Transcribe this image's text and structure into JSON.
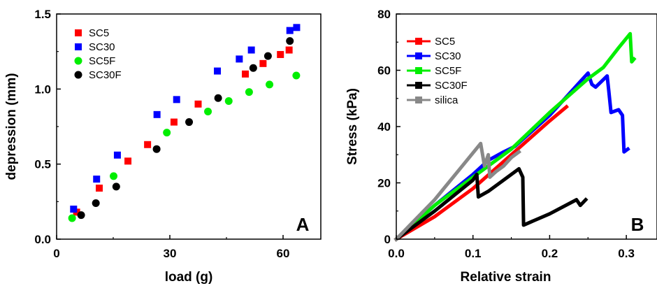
{
  "chart_data": [
    {
      "type": "scatter",
      "panel_label": "A",
      "xlabel": "load (g)",
      "ylabel": "depression (mm)",
      "xlim": [
        0,
        70
      ],
      "ylim": [
        0,
        1.5
      ],
      "x_ticks": [
        "0",
        "30",
        "60"
      ],
      "y_ticks": [
        "0.0",
        "0.5",
        "1.0",
        "1.5"
      ],
      "x_tick_values": [
        0,
        30,
        60
      ],
      "y_tick_values": [
        0,
        0.5,
        1.0,
        1.5
      ],
      "legend_position": "top-left",
      "grid": false,
      "series": [
        {
          "name": "SC5",
          "color": "#ff0000",
          "marker": "square",
          "points": [
            [
              5.3,
              0.18
            ],
            [
              11.3,
              0.34
            ],
            [
              18.9,
              0.52
            ],
            [
              24.1,
              0.63
            ],
            [
              31.1,
              0.78
            ],
            [
              37.5,
              0.9
            ],
            [
              50.0,
              1.1
            ],
            [
              54.7,
              1.17
            ],
            [
              59.3,
              1.23
            ],
            [
              61.6,
              1.26
            ]
          ]
        },
        {
          "name": "SC30",
          "color": "#0000ff",
          "marker": "square",
          "points": [
            [
              4.5,
              0.2
            ],
            [
              10.6,
              0.4
            ],
            [
              16.1,
              0.56
            ],
            [
              26.6,
              0.83
            ],
            [
              31.8,
              0.93
            ],
            [
              42.6,
              1.12
            ],
            [
              48.4,
              1.2
            ],
            [
              51.6,
              1.26
            ],
            [
              61.8,
              1.39
            ],
            [
              63.6,
              1.41
            ]
          ]
        },
        {
          "name": "SC5F",
          "color": "#00ee00",
          "marker": "circle",
          "points": [
            [
              4.1,
              0.14
            ],
            [
              15.1,
              0.42
            ],
            [
              29.2,
              0.71
            ],
            [
              40.1,
              0.85
            ],
            [
              45.6,
              0.92
            ],
            [
              51.0,
              0.98
            ],
            [
              56.4,
              1.03
            ],
            [
              63.5,
              1.09
            ]
          ]
        },
        {
          "name": "SC30F",
          "color": "#000000",
          "marker": "circle",
          "points": [
            [
              6.5,
              0.16
            ],
            [
              10.4,
              0.24
            ],
            [
              15.8,
              0.35
            ],
            [
              26.5,
              0.6
            ],
            [
              35.1,
              0.78
            ],
            [
              42.8,
              0.94
            ],
            [
              52.1,
              1.14
            ],
            [
              56.0,
              1.22
            ],
            [
              61.8,
              1.32
            ]
          ]
        }
      ]
    },
    {
      "type": "line",
      "panel_label": "B",
      "xlabel": "Relative strain",
      "ylabel": "Stress (kPa)",
      "xlim": [
        0,
        0.34
      ],
      "ylim": [
        0,
        80
      ],
      "x_ticks": [
        "0.0",
        "0.1",
        "0.2",
        "0.3"
      ],
      "y_ticks": [
        "0",
        "20",
        "40",
        "60",
        "80"
      ],
      "x_tick_values": [
        0,
        0.1,
        0.2,
        0.3
      ],
      "y_tick_values": [
        0,
        20,
        40,
        60,
        80
      ],
      "legend_position": "top-left",
      "grid": false,
      "series": [
        {
          "name": "SC5",
          "color": "#ff0000",
          "points": [
            [
              0,
              0
            ],
            [
              0.05,
              8
            ],
            [
              0.1,
              18
            ],
            [
              0.15,
              30
            ],
            [
              0.2,
              42
            ],
            [
              0.222,
              47
            ]
          ]
        },
        {
          "name": "SC30",
          "color": "#0000ff",
          "points": [
            [
              0,
              0
            ],
            [
              0.05,
              12
            ],
            [
              0.1,
              23
            ],
            [
              0.12,
              28
            ],
            [
              0.14,
              31
            ],
            [
              0.155,
              33
            ],
            [
              0.2,
              44
            ],
            [
              0.24,
              56
            ],
            [
              0.25,
              59
            ],
            [
              0.255,
              55
            ],
            [
              0.26,
              54
            ],
            [
              0.275,
              58
            ],
            [
              0.277,
              53
            ],
            [
              0.28,
              45
            ],
            [
              0.29,
              46
            ],
            [
              0.295,
              44
            ],
            [
              0.297,
              31
            ],
            [
              0.302,
              32
            ]
          ]
        },
        {
          "name": "SC5F",
          "color": "#00ee00",
          "points": [
            [
              0,
              0
            ],
            [
              0.05,
              12
            ],
            [
              0.1,
              22
            ],
            [
              0.15,
              32
            ],
            [
              0.2,
              45
            ],
            [
              0.25,
              57
            ],
            [
              0.27,
              61
            ],
            [
              0.29,
              68
            ],
            [
              0.305,
              73
            ],
            [
              0.307,
              63
            ],
            [
              0.31,
              64
            ]
          ]
        },
        {
          "name": "SC30F",
          "color": "#000000",
          "points": [
            [
              0,
              0
            ],
            [
              0.05,
              10
            ],
            [
              0.1,
              21
            ],
            [
              0.105,
              23
            ],
            [
              0.107,
              15
            ],
            [
              0.12,
              17
            ],
            [
              0.14,
              21
            ],
            [
              0.16,
              25
            ],
            [
              0.165,
              22
            ],
            [
              0.166,
              5
            ],
            [
              0.2,
              9
            ],
            [
              0.235,
              14
            ],
            [
              0.24,
              12
            ],
            [
              0.247,
              14
            ]
          ]
        },
        {
          "name": "silica",
          "color": "#888888",
          "points": [
            [
              0,
              0
            ],
            [
              0.05,
              14
            ],
            [
              0.08,
              24
            ],
            [
              0.11,
              34
            ],
            [
              0.115,
              26
            ],
            [
              0.12,
              30
            ],
            [
              0.122,
              22
            ],
            [
              0.13,
              24
            ],
            [
              0.14,
              26
            ],
            [
              0.15,
              29
            ],
            [
              0.16,
              31
            ]
          ]
        }
      ]
    }
  ]
}
